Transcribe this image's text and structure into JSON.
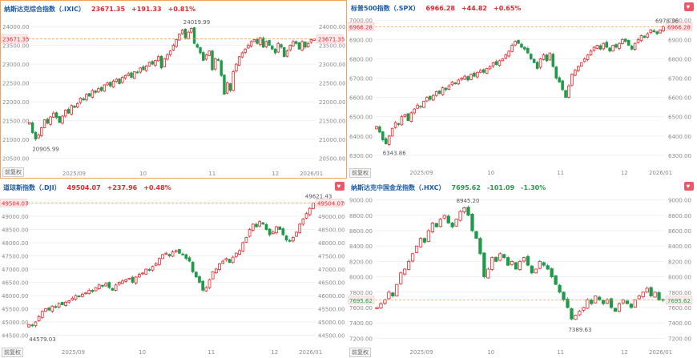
{
  "colors": {
    "up": "#e0272b",
    "down": "#1f9a4a",
    "axis_text": "#8a8a8a",
    "ref_line": "#f0a35a",
    "grid": "#f1f1f1",
    "header_name": "#1a5aa8"
  },
  "adjust_label": "前复权",
  "x_ticks": [
    "2025/09",
    "10",
    "11",
    "12",
    "2026/01"
  ],
  "panels": [
    {
      "id": "ixic",
      "active": true,
      "favorite_icon": "heart-icon",
      "header": {
        "name": "纳斯达克综合指数（.IXIC）",
        "last": "23671.35",
        "change": "+191.33",
        "pct": "+0.81%",
        "dir": "up"
      },
      "y_ticks": [
        "24000.00",
        "23500.00",
        "23000.00",
        "22500.00",
        "22000.00",
        "21500.00",
        "21000.00",
        "20500.00"
      ],
      "price_tag": "23671.35",
      "high_label": "24019.99",
      "low_label": "20905.99",
      "chart_data": {
        "type": "candlestick",
        "ylim": [
          20300,
          24300
        ],
        "last": 23671.35,
        "high": 24019.99,
        "low": 20905.99,
        "closes": [
          21450,
          21180,
          21010,
          21120,
          21310,
          21520,
          21430,
          21600,
          21700,
          21580,
          21450,
          21620,
          21780,
          21700,
          21900,
          21850,
          21950,
          22100,
          22050,
          22200,
          22150,
          22300,
          22250,
          22350,
          22300,
          22450,
          22500,
          22420,
          22550,
          22600,
          22480,
          22650,
          22700,
          22750,
          22650,
          22800,
          22780,
          22900,
          22850,
          22950,
          23050,
          23000,
          23100,
          23200,
          22900,
          23150,
          23250,
          23350,
          23500,
          23650,
          23800,
          23900,
          23700,
          23850,
          23950,
          23550,
          23450,
          23300,
          23100,
          23250,
          23350,
          22850,
          23150,
          23100,
          22700,
          22200,
          22500,
          22300,
          22800,
          23000,
          23200,
          23300,
          23400,
          23500,
          23600,
          23650,
          23550,
          23700,
          23450,
          23600,
          23500,
          23400,
          23300,
          23550,
          23450,
          23200,
          23350,
          23500,
          23600,
          23550,
          23400,
          23600,
          23450,
          23550,
          23650,
          23671
        ]
      }
    },
    {
      "id": "spx",
      "active": false,
      "favorite_icon": "heart-icon",
      "header": {
        "name": "标普500指数（.SPX）",
        "last": "6966.28",
        "change": "+44.82",
        "pct": "+0.65%",
        "dir": "up"
      },
      "y_ticks": [
        "7000.00",
        "6900.00",
        "6800.00",
        "6700.00",
        "6600.00",
        "6500.00",
        "6400.00",
        "6300.00"
      ],
      "price_tag": "6966.28",
      "high_label": "6978.36",
      "low_label": "6343.86",
      "chart_data": {
        "type": "candlestick",
        "ylim": [
          6250,
          7030
        ],
        "last": 6966.28,
        "high": 6978.36,
        "low": 6343.86,
        "closes": [
          6450,
          6420,
          6380,
          6360,
          6400,
          6440,
          6470,
          6460,
          6500,
          6510,
          6480,
          6520,
          6540,
          6560,
          6550,
          6580,
          6600,
          6590,
          6610,
          6630,
          6620,
          6650,
          6640,
          6660,
          6680,
          6670,
          6690,
          6700,
          6710,
          6690,
          6720,
          6710,
          6730,
          6740,
          6730,
          6750,
          6760,
          6780,
          6770,
          6790,
          6800,
          6820,
          6840,
          6870,
          6890,
          6880,
          6860,
          6850,
          6830,
          6800,
          6780,
          6750,
          6800,
          6820,
          6790,
          6830,
          6760,
          6700,
          6680,
          6640,
          6600,
          6660,
          6720,
          6740,
          6760,
          6780,
          6800,
          6820,
          6840,
          6860,
          6870,
          6850,
          6880,
          6860,
          6840,
          6870,
          6860,
          6880,
          6900,
          6890,
          6870,
          6850,
          6880,
          6900,
          6920,
          6910,
          6930,
          6950,
          6940,
          6930,
          6950,
          6966
        ]
      }
    },
    {
      "id": "dji",
      "active": false,
      "favorite_icon": "heart-icon",
      "header": {
        "name": "道琼斯指数（.DJI）",
        "last": "49504.07",
        "change": "+237.96",
        "pct": "+0.48%",
        "dir": "up"
      },
      "y_ticks": [
        "49500.00",
        "49000.00",
        "48500.00",
        "48000.00",
        "47500.00",
        "47000.00",
        "46500.00",
        "46000.00",
        "45500.00",
        "45000.00",
        "44500.00"
      ],
      "price_tag": "49504.07",
      "high_label": "49621.43",
      "low_label": "44579.03",
      "chart_data": {
        "type": "candlestick",
        "ylim": [
          44150,
          49850
        ],
        "last": 49504.07,
        "high": 49621.43,
        "low": 44579.03,
        "closes": [
          44900,
          44850,
          45000,
          45200,
          45400,
          45500,
          45450,
          45600,
          45550,
          45700,
          45650,
          45750,
          45800,
          45900,
          46000,
          45950,
          46050,
          46100,
          46200,
          46150,
          46300,
          46400,
          46350,
          46450,
          46300,
          46200,
          46400,
          46500,
          46550,
          46600,
          46650,
          46500,
          46700,
          46800,
          46850,
          47000,
          46950,
          47100,
          47200,
          47400,
          47550,
          47600,
          47500,
          47650,
          47700,
          47600,
          47550,
          47400,
          47300,
          46900,
          46700,
          46500,
          46200,
          46300,
          46600,
          46900,
          47000,
          47200,
          47300,
          47400,
          47250,
          47450,
          47600,
          47700,
          48000,
          48200,
          48500,
          48700,
          48600,
          48800,
          48700,
          48500,
          48300,
          48400,
          48600,
          48500,
          48300,
          48100,
          48050,
          48200,
          48400,
          48700,
          48900,
          49100,
          49300,
          49504
        ]
      }
    },
    {
      "id": "hxc",
      "active": false,
      "favorite_icon": "heart-icon",
      "header": {
        "name": "纳斯达克中国金龙指数（.HXC）",
        "last": "7695.62",
        "change": "-101.09",
        "pct": "-1.30%",
        "dir": "down"
      },
      "y_ticks": [
        "9000.00",
        "8800.00",
        "8600.00",
        "8400.00",
        "8200.00",
        "8000.00",
        "7800.00",
        "7600.00",
        "7400.00",
        "7200.00"
      ],
      "price_tag": "7695.62",
      "high_label": "8945.20",
      "low_label": "7389.63",
      "chart_data": {
        "type": "candlestick",
        "ylim": [
          7120,
          9080
        ],
        "last": 7695.62,
        "high": 8945.2,
        "low": 7389.63,
        "closes": [
          7600,
          7650,
          7700,
          7800,
          7750,
          7900,
          8050,
          8100,
          8200,
          8300,
          8400,
          8500,
          8450,
          8600,
          8700,
          8650,
          8750,
          8800,
          8700,
          8650,
          8750,
          8850,
          8900,
          8800,
          8600,
          8500,
          8300,
          8000,
          8100,
          8250,
          8200,
          8300,
          8250,
          8150,
          8200,
          8100,
          8200,
          8250,
          8150,
          8050,
          8100,
          8200,
          8150,
          8100,
          8000,
          7900,
          7800,
          7700,
          7600,
          7450,
          7500,
          7550,
          7600,
          7700,
          7650,
          7750,
          7700,
          7650,
          7700,
          7600,
          7550,
          7650,
          7700,
          7650,
          7600,
          7700,
          7750,
          7800,
          7850,
          7750,
          7800,
          7700,
          7695
        ]
      }
    }
  ]
}
